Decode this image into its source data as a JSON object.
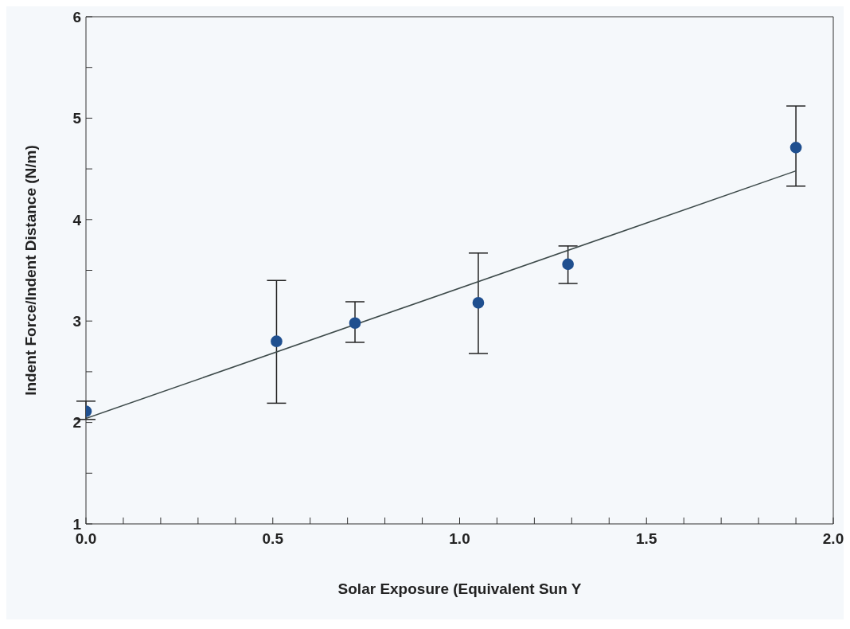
{
  "chart_data": {
    "type": "scatter",
    "xlabel": "Solar Exposure (Equivalent Sun Y",
    "ylabel": "Indent Force/Indent Distance (N/m)",
    "xlim": [
      0,
      2
    ],
    "ylim": [
      1,
      6
    ],
    "xticks": [
      {
        "value": 0,
        "label": "0.0"
      },
      {
        "value": 0.1,
        "label": null
      },
      {
        "value": 0.2,
        "label": null
      },
      {
        "value": 0.3,
        "label": null
      },
      {
        "value": 0.4,
        "label": null
      },
      {
        "value": 0.5,
        "label": "0.5"
      },
      {
        "value": 0.6,
        "label": null
      },
      {
        "value": 0.7,
        "label": null
      },
      {
        "value": 0.8,
        "label": null
      },
      {
        "value": 0.9,
        "label": null
      },
      {
        "value": 1,
        "label": "1.0"
      },
      {
        "value": 1.1,
        "label": null
      },
      {
        "value": 1.2,
        "label": null
      },
      {
        "value": 1.3,
        "label": null
      },
      {
        "value": 1.4,
        "label": null
      },
      {
        "value": 1.5,
        "label": "1.5"
      },
      {
        "value": 1.6,
        "label": null
      },
      {
        "value": 1.7,
        "label": null
      },
      {
        "value": 1.8,
        "label": null
      },
      {
        "value": 1.9,
        "label": null
      },
      {
        "value": 2,
        "label": "2.0"
      }
    ],
    "yticks": [
      1,
      {
        "value": 1.5,
        "label": null
      },
      2,
      {
        "value": 2.5,
        "label": null
      },
      3,
      {
        "value": 3.5,
        "label": null
      },
      4,
      {
        "value": 4.5,
        "label": null
      },
      5,
      {
        "value": 5.5,
        "label": null
      },
      6
    ],
    "grid": false,
    "series": [
      {
        "marker": "circle",
        "color": "#1f4f8f",
        "x": [
          0,
          0.51,
          0.72,
          1.05,
          1.29,
          1.9
        ],
        "values": [
          2.11,
          2.8,
          2.98,
          3.18,
          3.56,
          4.71
        ],
        "errors": [
          [
            2.03,
            2.21
          ],
          [
            2.19,
            3.4
          ],
          [
            2.79,
            3.19
          ],
          [
            2.68,
            3.67
          ],
          [
            3.37,
            3.74
          ],
          [
            4.33,
            5.12
          ]
        ]
      },
      {
        "type": "line",
        "color": "#3d4a4a",
        "x": [
          0,
          1.9
        ],
        "values": [
          2.04,
          4.48
        ]
      }
    ]
  }
}
